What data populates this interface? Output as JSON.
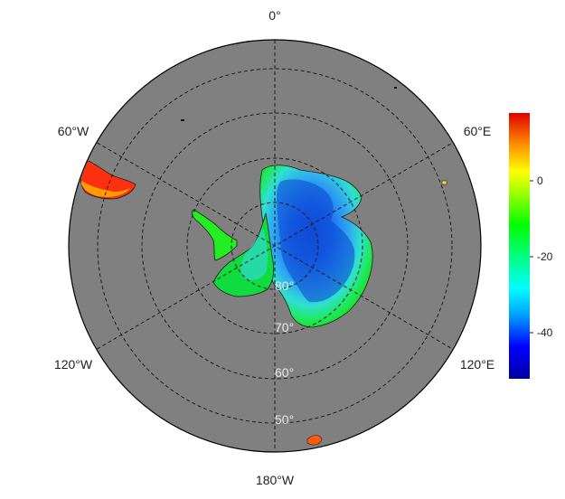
{
  "map": {
    "projection": "south polar stereographic",
    "ocean_color": "#808080",
    "longitude_labels": [
      {
        "key": "lon-0",
        "text": "0°"
      },
      {
        "key": "lon-60e",
        "text": "60°E"
      },
      {
        "key": "lon-120e",
        "text": "120°E"
      },
      {
        "key": "lon-180",
        "text": "180°W"
      },
      {
        "key": "lon-120w",
        "text": "120°W"
      },
      {
        "key": "lon-60w",
        "text": "60°W"
      }
    ],
    "latitude_labels": [
      {
        "key": "lat-80",
        "text": "80°"
      },
      {
        "key": "lat-70",
        "text": "70°"
      },
      {
        "key": "lat-60",
        "text": "60°"
      },
      {
        "key": "lat-50",
        "text": "50°"
      }
    ],
    "colorbar": {
      "ticks": [
        "0",
        "-20",
        "-40"
      ],
      "tick_values": [
        0,
        -20,
        -40
      ],
      "range": [
        -52,
        18
      ],
      "colormap": [
        "#0000a0",
        "#0000ff",
        "#00b0ff",
        "#00ffff",
        "#00ff80",
        "#00ff00",
        "#80ff00",
        "#ffff00",
        "#ffa000",
        "#ff4000",
        "#e00000"
      ]
    }
  }
}
